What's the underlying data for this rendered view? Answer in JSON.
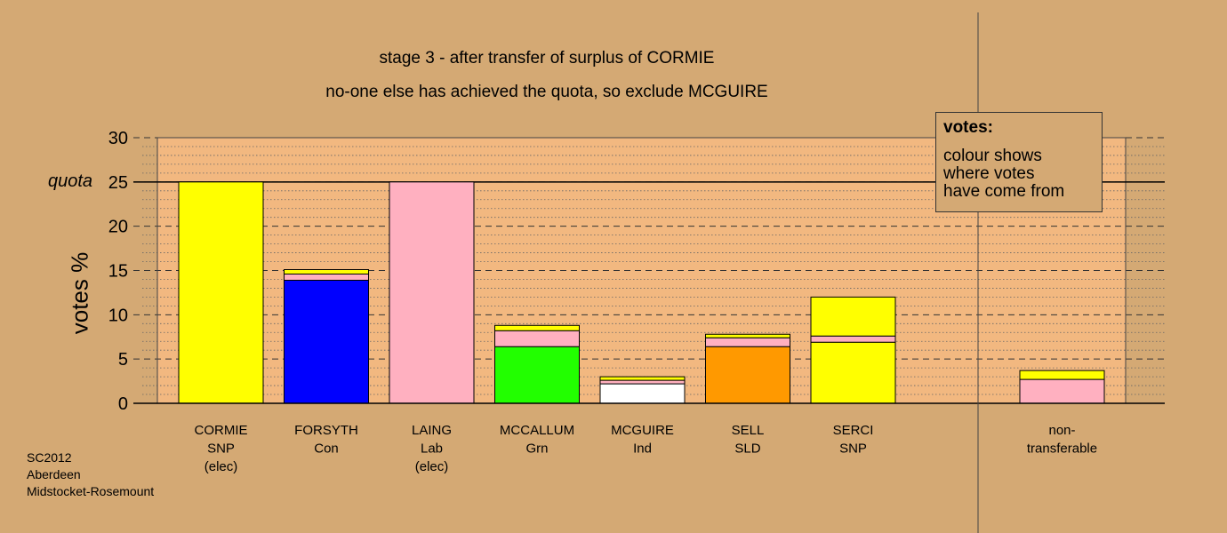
{
  "chart_data": {
    "type": "bar",
    "stacked": true,
    "title": "stage 3 - after transfer of surplus of CORMIE",
    "subtitle": "no-one else has achieved the quota, so exclude MCGUIRE",
    "ylabel": "votes %",
    "ylim": [
      0,
      30
    ],
    "yticks": [
      0,
      5,
      10,
      15,
      20,
      25,
      30
    ],
    "quota": 25,
    "quota_label": "quota",
    "grid": "dotted 1-unit lines, dashed 5-unit lines",
    "legend": {
      "title": "votes:",
      "text": "colour shows\nwhere votes\nhave come from",
      "placement": "top-right"
    },
    "candidates": [
      {
        "name": "CORMIE",
        "party": "SNP",
        "note": "(elec)",
        "segments": [
          {
            "from": "SNP",
            "color": "#ffff00",
            "value": 25.0
          }
        ]
      },
      {
        "name": "FORSYTH",
        "party": "Con",
        "note": "",
        "segments": [
          {
            "from": "Con",
            "color": "#0000ff",
            "value": 13.9
          },
          {
            "from": "Lab",
            "color": "#ffb0c0",
            "value": 0.7
          },
          {
            "from": "SNP",
            "color": "#ffff00",
            "value": 0.5
          }
        ]
      },
      {
        "name": "LAING",
        "party": "Lab",
        "note": "(elec)",
        "segments": [
          {
            "from": "Lab",
            "color": "#ffb0c0",
            "value": 25.0
          }
        ]
      },
      {
        "name": "MCCALLUM",
        "party": "Grn",
        "note": "",
        "segments": [
          {
            "from": "Grn",
            "color": "#22ff00",
            "value": 6.4
          },
          {
            "from": "Lab",
            "color": "#ffb0c0",
            "value": 1.8
          },
          {
            "from": "SNP",
            "color": "#ffff00",
            "value": 0.6
          }
        ]
      },
      {
        "name": "MCGUIRE",
        "party": "Ind",
        "note": "",
        "segments": [
          {
            "from": "Ind",
            "color": "#ffffff",
            "value": 2.2
          },
          {
            "from": "Lab",
            "color": "#ffb0c0",
            "value": 0.4
          },
          {
            "from": "SNP",
            "color": "#ffff00",
            "value": 0.4
          }
        ]
      },
      {
        "name": "SELL",
        "party": "SLD",
        "note": "",
        "segments": [
          {
            "from": "SLD",
            "color": "#ff9900",
            "value": 6.4
          },
          {
            "from": "Lab",
            "color": "#ffb0c0",
            "value": 1.0
          },
          {
            "from": "SNP",
            "color": "#ffff00",
            "value": 0.4
          }
        ]
      },
      {
        "name": "SERCI",
        "party": "SNP",
        "note": "",
        "segments": [
          {
            "from": "SNP",
            "color": "#ffff00",
            "value": 6.9
          },
          {
            "from": "Lab",
            "color": "#ffb0c0",
            "value": 0.7
          },
          {
            "from": "SNP",
            "color": "#ffff00",
            "value": 4.4
          }
        ]
      }
    ],
    "nontransferable": {
      "name": "non-",
      "party": "transferable",
      "segments": [
        {
          "from": "Lab",
          "color": "#ffb0c0",
          "value": 2.7
        },
        {
          "from": "SNP",
          "color": "#ffff00",
          "value": 1.0
        }
      ]
    }
  },
  "source": [
    "SC2012",
    "Aberdeen",
    "Midstocket-Rosemount"
  ]
}
